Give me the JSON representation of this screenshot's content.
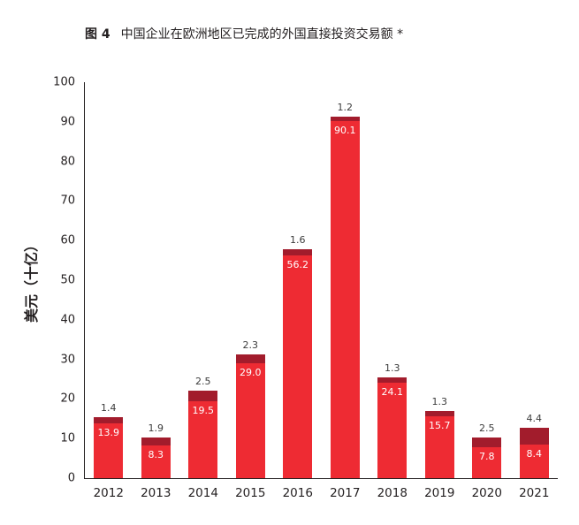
{
  "title": {
    "label": "图 4",
    "text": "中国企业在欧洲地区已完成的外国直接投资交易额 *"
  },
  "chart_data": {
    "type": "bar",
    "stacked": true,
    "title": "中国企业在欧洲地区已完成的外国直接投资交易额 *",
    "xlabel": "",
    "ylabel": "美元（十亿）",
    "ylim": [
      0,
      100
    ],
    "yticks": [
      0,
      10,
      20,
      30,
      40,
      50,
      60,
      70,
      80,
      90,
      100
    ],
    "grid": false,
    "legend": "none",
    "categories": [
      "2012",
      "2013",
      "2014",
      "2015",
      "2016",
      "2017",
      "2018",
      "2019",
      "2020",
      "2021"
    ],
    "series": [
      {
        "name": "bottom-segment",
        "color": "#ee2b33",
        "values": [
          13.9,
          8.3,
          19.5,
          29.0,
          56.2,
          90.1,
          24.1,
          15.7,
          7.8,
          8.4
        ]
      },
      {
        "name": "top-segment",
        "color": "#a21c2c",
        "values": [
          1.4,
          1.9,
          2.5,
          2.3,
          1.6,
          1.2,
          1.3,
          1.3,
          2.5,
          4.4
        ]
      }
    ]
  }
}
